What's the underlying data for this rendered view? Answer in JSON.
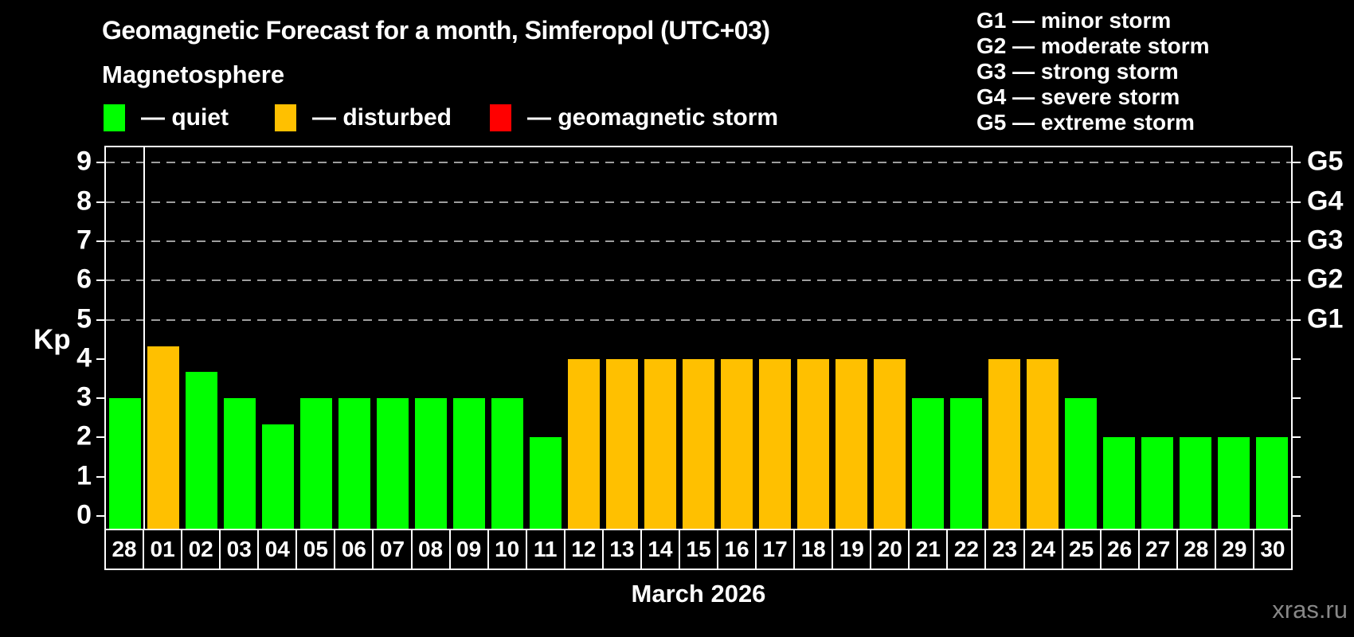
{
  "header": {
    "title": "Geomagnetic Forecast for a month, Simferopol (UTC+03)",
    "subtitle": "Magnetosphere"
  },
  "legend": {
    "items": [
      {
        "status": "quiet",
        "label": "— quiet"
      },
      {
        "status": "disturbed",
        "label": "— disturbed"
      },
      {
        "status": "storm",
        "label": "— geomagnetic storm"
      }
    ]
  },
  "g_legend": {
    "items": [
      "G1 — minor storm",
      "G2 — moderate storm",
      "G3 — strong storm",
      "G4 — severe storm",
      "G5 — extreme storm"
    ]
  },
  "colors": {
    "quiet": "#00ff00",
    "disturbed": "#ffc000",
    "storm": "#ff0000",
    "axis": "#ffffff",
    "grid": "#9e9e9e",
    "text": "#ffffff",
    "watermark": "#878787",
    "background": "#000000"
  },
  "chart_data": {
    "type": "bar",
    "title": "Geomagnetic Forecast for a month, Simferopol (UTC+03)",
    "xlabel": "March 2026",
    "ylabel": "Kp",
    "ylim": [
      0,
      9
    ],
    "yticks": [
      0,
      1,
      2,
      3,
      4,
      5,
      6,
      7,
      8,
      9
    ],
    "grid_kp": [
      5,
      6,
      7,
      8,
      9
    ],
    "grid_style": "dashed horizontal, only at Kp 5-9",
    "legend_position": "top-left",
    "right_axis": [
      {
        "kp": 5,
        "label": "G1"
      },
      {
        "kp": 6,
        "label": "G2"
      },
      {
        "kp": 7,
        "label": "G3"
      },
      {
        "kp": 8,
        "label": "G4"
      },
      {
        "kp": 9,
        "label": "G5"
      }
    ],
    "categories": [
      "28",
      "01",
      "02",
      "03",
      "04",
      "05",
      "06",
      "07",
      "08",
      "09",
      "10",
      "11",
      "12",
      "13",
      "14",
      "15",
      "16",
      "17",
      "18",
      "19",
      "20",
      "21",
      "22",
      "23",
      "24",
      "25",
      "26",
      "27",
      "28",
      "29",
      "30"
    ],
    "month_separator_after_category_index": 0,
    "series": [
      {
        "name": "Kp forecast",
        "values": [
          3,
          4.33,
          3.67,
          3,
          2.33,
          3,
          3,
          3,
          3,
          3,
          3,
          2,
          4,
          4,
          4,
          4,
          4,
          4,
          4,
          4,
          4,
          3,
          3,
          4,
          4,
          3,
          2,
          2,
          2,
          2,
          2
        ],
        "statuses": [
          "quiet",
          "disturbed",
          "quiet",
          "quiet",
          "quiet",
          "quiet",
          "quiet",
          "quiet",
          "quiet",
          "quiet",
          "quiet",
          "quiet",
          "disturbed",
          "disturbed",
          "disturbed",
          "disturbed",
          "disturbed",
          "disturbed",
          "disturbed",
          "disturbed",
          "disturbed",
          "quiet",
          "quiet",
          "disturbed",
          "disturbed",
          "quiet",
          "quiet",
          "quiet",
          "quiet",
          "quiet",
          "quiet"
        ]
      }
    ]
  },
  "footer": {
    "xlabel": "March 2026",
    "watermark": "xras.ru"
  }
}
